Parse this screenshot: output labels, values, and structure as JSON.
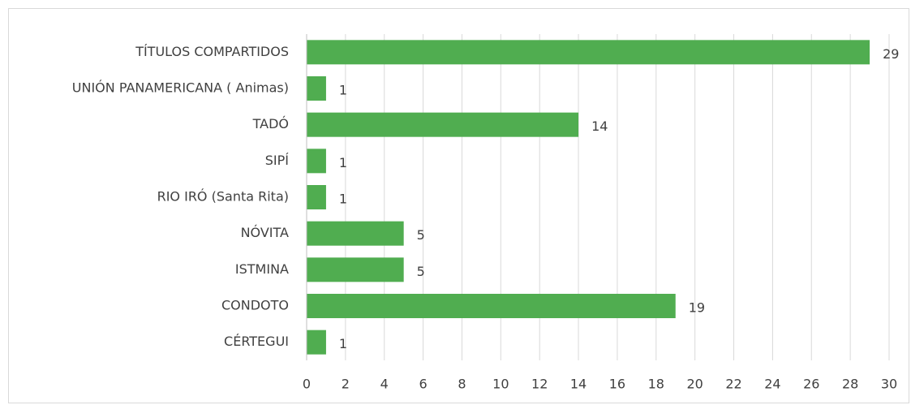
{
  "chart_data": {
    "type": "bar",
    "orientation": "horizontal",
    "categories": [
      "TÍTULOS COMPARTIDOS",
      "UNIÓN PANAMERICANA ( Animas)",
      "TADÓ",
      "SIPÍ",
      "RIO IRÓ (Santa Rita)",
      "NÓVITA",
      "ISTMINA",
      "CONDOTO",
      "CÉRTEGUI"
    ],
    "values": [
      29,
      1,
      14,
      1,
      1,
      5,
      5,
      19,
      1
    ],
    "color": "#50ad50",
    "xlim": [
      0,
      30
    ],
    "xticks": [
      0,
      2,
      4,
      6,
      8,
      10,
      12,
      14,
      16,
      18,
      20,
      22,
      24,
      26,
      28,
      30
    ],
    "grid": true
  }
}
